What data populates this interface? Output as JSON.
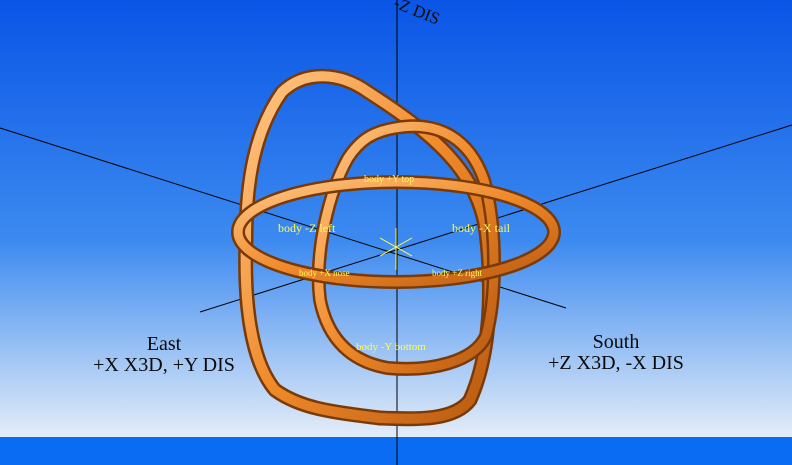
{
  "scene": {
    "colors": {
      "sky_top": "#0a55e6",
      "sky_mid": "#3c8af0",
      "sky_horizon": "#e4edf8",
      "ground": "#0a6cf2",
      "ring": "#f08a2a",
      "ring_highlight": "#ffc889",
      "label_yellow": "#fcfc5a"
    },
    "labels": {
      "top_axis": "-Z DIS",
      "east_line1": "East",
      "east_line2": "+X X3D, +Y DIS",
      "south_line1": "South",
      "south_line2": "+Z X3D, -X DIS",
      "body_left": "body -Z left",
      "body_tail": "body -X tail",
      "body_top": "body +Y top",
      "body_nose": "body +X nose",
      "body_right": "body +Z right",
      "body_bottom": "body -Y bottom"
    }
  }
}
